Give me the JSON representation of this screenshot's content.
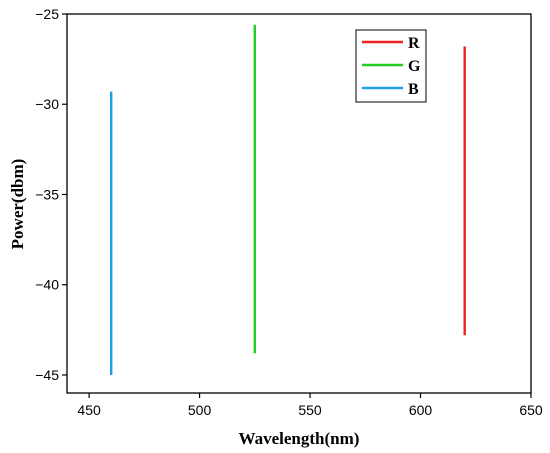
{
  "chart_data": {
    "type": "line",
    "title": "",
    "xlabel": "Wavelength(nm)",
    "ylabel": "Power(dbm)",
    "xlim": [
      440,
      650
    ],
    "ylim": [
      -46,
      -25
    ],
    "xticks": [
      450,
      500,
      550,
      600,
      650
    ],
    "yticks": [
      -25,
      -30,
      -35,
      -40,
      -45
    ],
    "ytick_labels": [
      "−25",
      "−30",
      "−35",
      "−40",
      "−45"
    ],
    "grid": false,
    "legend_position": "top-right",
    "series": [
      {
        "name": "R",
        "color": "#ee2222",
        "x": [
          620,
          620
        ],
        "y": [
          -26.8,
          -42.8
        ]
      },
      {
        "name": "G",
        "color": "#22cc22",
        "x": [
          525,
          525
        ],
        "y": [
          -25.6,
          -43.8
        ]
      },
      {
        "name": "B",
        "color": "#1f9eea",
        "x": [
          460,
          460
        ],
        "y": [
          -29.3,
          -45.0
        ]
      }
    ]
  }
}
